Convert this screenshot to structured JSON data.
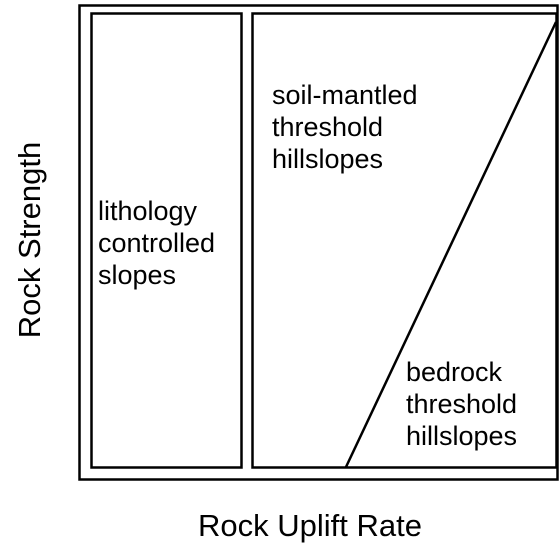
{
  "axes": {
    "x_label": "Rock Uplift Rate",
    "y_label": "Rock Strength"
  },
  "regions": [
    {
      "lines": [
        "lithology",
        "controlled",
        "slopes"
      ]
    },
    {
      "lines": [
        "soil-mantled",
        "threshold",
        "hillslopes"
      ]
    },
    {
      "lines": [
        "bedrock",
        "threshold",
        "hillslopes"
      ]
    }
  ]
}
